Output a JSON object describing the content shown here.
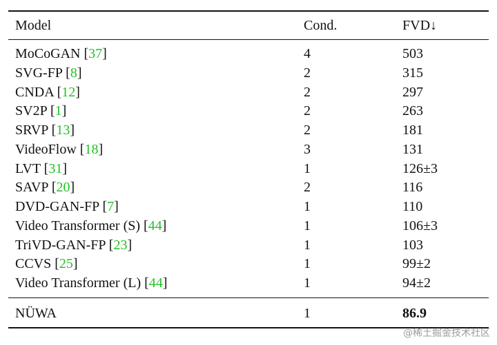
{
  "table": {
    "header": [
      "Model",
      "Cond.",
      "FVD↓"
    ],
    "rows": [
      {
        "model": [
          "MoCoGAN [",
          "37",
          "]"
        ],
        "cond": "4",
        "fvd": "503"
      },
      {
        "model": [
          "SVG-FP [",
          "8",
          "]"
        ],
        "cond": "2",
        "fvd": "315"
      },
      {
        "model": [
          "CNDA [",
          "12",
          "]"
        ],
        "cond": "2",
        "fvd": "297"
      },
      {
        "model": [
          "SV2P [",
          "1",
          "]"
        ],
        "cond": "2",
        "fvd": "263"
      },
      {
        "model": [
          "SRVP [",
          "13",
          "]"
        ],
        "cond": "2",
        "fvd": "181"
      },
      {
        "model": [
          "VideoFlow [",
          "18",
          "]"
        ],
        "cond": "3",
        "fvd": "131"
      },
      {
        "model": [
          "LVT [",
          "31",
          "]"
        ],
        "cond": "1",
        "fvd": "126±3"
      },
      {
        "model": [
          "SAVP [",
          "20",
          "]"
        ],
        "cond": "2",
        "fvd": "116"
      },
      {
        "model": [
          "DVD-GAN-FP [",
          "7",
          "]"
        ],
        "cond": "1",
        "fvd": "110"
      },
      {
        "model": [
          "Video Transformer (S) [",
          "44",
          "]"
        ],
        "cond": "1",
        "fvd": "106±3"
      },
      {
        "model": [
          "TriVD-GAN-FP [",
          "23",
          "]"
        ],
        "cond": "1",
        "fvd": "103"
      },
      {
        "model": [
          "CCVS [",
          "25",
          "]"
        ],
        "cond": "1",
        "fvd": "99±2"
      },
      {
        "model": [
          "Video Transformer (L) [",
          "44",
          "]"
        ],
        "cond": "1",
        "fvd": "94±2"
      }
    ],
    "final_row": {
      "model": "NÜWA",
      "cond": "1",
      "fvd": "86.9"
    }
  },
  "watermark": "@稀土掘金技术社区"
}
